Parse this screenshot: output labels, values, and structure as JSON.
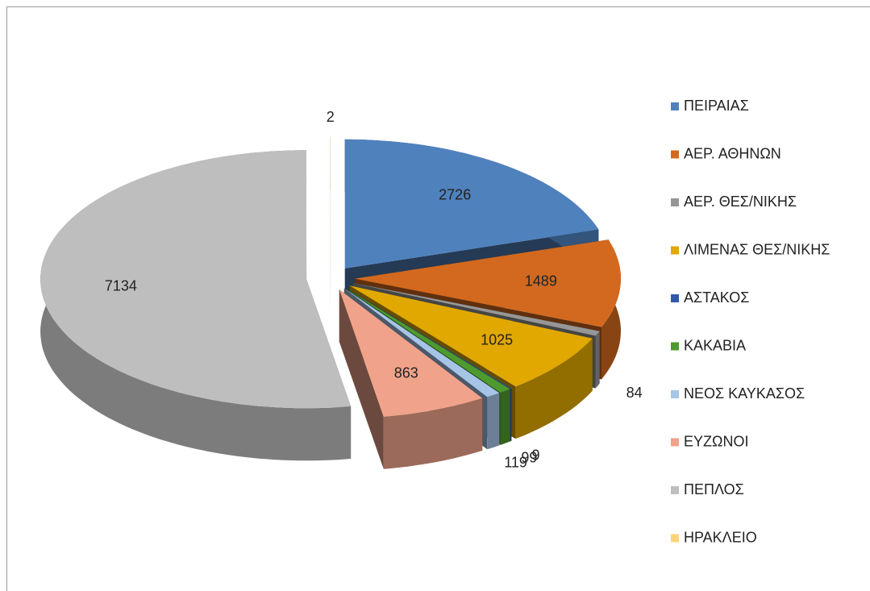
{
  "chart_data": {
    "type": "pie3d",
    "categories": [
      "ΠΕΙΡΑΙΑΣ",
      "ΑΕΡ. ΑΘΗΝΩΝ",
      "ΑΕΡ. ΘΕΣ/ΝΙΚΗΣ",
      "ΛΙΜΕΝΑΣ ΘΕΣ/ΝΙΚΗΣ",
      "ΑΣΤΑΚΟΣ",
      "ΚΑΚΑΒΙΑ",
      "ΝΕΟΣ ΚΑΥΚΑΣΟΣ",
      "ΕΥΖΩΝΟΙ",
      "ΠΕΠΛΟΣ",
      "ΗΡΑΚΛΕΙΟ"
    ],
    "values": [
      2726,
      1489,
      84,
      1025,
      9,
      99,
      119,
      863,
      7134,
      2
    ],
    "colors": [
      "#4f81bd",
      "#d2691e",
      "#969696",
      "#e0a800",
      "#2e5aa8",
      "#4e9a2e",
      "#a6c4e6",
      "#f0a38a",
      "#bebebe",
      "#ffd27a"
    ],
    "legend": "right"
  }
}
